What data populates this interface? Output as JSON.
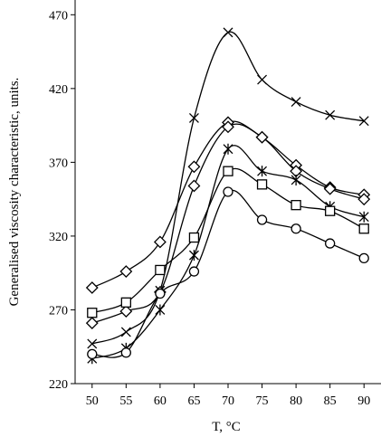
{
  "chart_data": {
    "type": "line",
    "title": "",
    "xlabel": "T, °C",
    "ylabel": "Generalised viscosity characteristic, units.",
    "x": [
      50,
      55,
      60,
      65,
      70,
      75,
      80,
      85,
      90
    ],
    "xlim": [
      47.5,
      92.5
    ],
    "ylim": [
      220,
      480
    ],
    "xticks": [
      "50",
      "55",
      "60",
      "65",
      "70",
      "75",
      "80",
      "85",
      "90"
    ],
    "yticks": [
      "220",
      "270",
      "320",
      "370",
      "420",
      "470"
    ],
    "grid": false,
    "legend": "none",
    "series": [
      {
        "marker": "x",
        "values": [
          247,
          255,
          283,
          400,
          458,
          426,
          411,
          402,
          398
        ]
      },
      {
        "marker": "diamond",
        "values": [
          285,
          296,
          316,
          367,
          397,
          387,
          368,
          353,
          348
        ]
      },
      {
        "marker": "diamond",
        "values": [
          261,
          269,
          282,
          354,
          394,
          387,
          364,
          352,
          345
        ]
      },
      {
        "marker": "asterisk",
        "values": [
          237,
          244,
          270,
          307,
          379,
          364,
          358,
          340,
          333
        ]
      },
      {
        "marker": "square",
        "values": [
          268,
          275,
          297,
          319,
          364,
          355,
          341,
          337,
          325
        ]
      },
      {
        "marker": "circle",
        "values": [
          240,
          241,
          281,
          296,
          350,
          331,
          325,
          315,
          305
        ]
      }
    ]
  }
}
